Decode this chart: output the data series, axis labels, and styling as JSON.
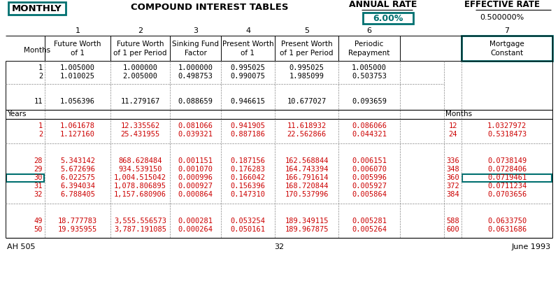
{
  "title_left": "MONTHLY",
  "title_center": "COMPOUND INTEREST TABLES",
  "title_annual": "ANNUAL RATE",
  "title_rate": "6.00%",
  "title_effective": "EFFECTIVE RATE",
  "title_effective_val": "0.500000%",
  "month_rows": [
    [
      1,
      "1.005000",
      "1.000000",
      "1.000000",
      "0.995025",
      "0.995025",
      "1.005000",
      "",
      ""
    ],
    [
      2,
      "1.010025",
      "2.005000",
      "0.498753",
      "0.990075",
      "1.985099",
      "0.503753",
      "",
      ""
    ],
    [
      11,
      "1.056396",
      "11.279167",
      "0.088659",
      "0.946615",
      "10.677027",
      "0.093659",
      "",
      ""
    ]
  ],
  "year_rows": [
    [
      1,
      "1.061678",
      "12.335562",
      "0.081066",
      "0.941905",
      "11.618932",
      "0.086066",
      "12",
      "1.0327972"
    ],
    [
      2,
      "1.127160",
      "25.431955",
      "0.039321",
      "0.887186",
      "22.562866",
      "0.044321",
      "24",
      "0.5318473"
    ],
    [
      28,
      "5.343142",
      "868.628484",
      "0.001151",
      "0.187156",
      "162.568844",
      "0.006151",
      "336",
      "0.0738149"
    ],
    [
      29,
      "5.672696",
      "934.539150",
      "0.001070",
      "0.176283",
      "164.743394",
      "0.006070",
      "348",
      "0.0728406"
    ],
    [
      30,
      "6.022575",
      "1,004.515042",
      "0.000996",
      "0.166042",
      "166.791614",
      "0.005996",
      "360",
      "0.0719461"
    ],
    [
      31,
      "6.394034",
      "1,078.806895",
      "0.000927",
      "0.156396",
      "168.720844",
      "0.005927",
      "372",
      "0.0711234"
    ],
    [
      32,
      "6.788405",
      "1,157.680906",
      "0.000864",
      "0.147310",
      "170.537996",
      "0.005864",
      "384",
      "0.0703656"
    ],
    [
      49,
      "18.777783",
      "3,555.556573",
      "0.000281",
      "0.053254",
      "189.349115",
      "0.005281",
      "588",
      "0.0633750"
    ],
    [
      50,
      "19.935955",
      "3,787.191085",
      "0.000264",
      "0.050161",
      "189.967875",
      "0.005264",
      "600",
      "0.0631686"
    ]
  ],
  "footer_left": "AH 505",
  "footer_center": "32",
  "footer_right": "June 1993",
  "teal": "#007070",
  "red": "#CC0000",
  "highlight_row": 30
}
